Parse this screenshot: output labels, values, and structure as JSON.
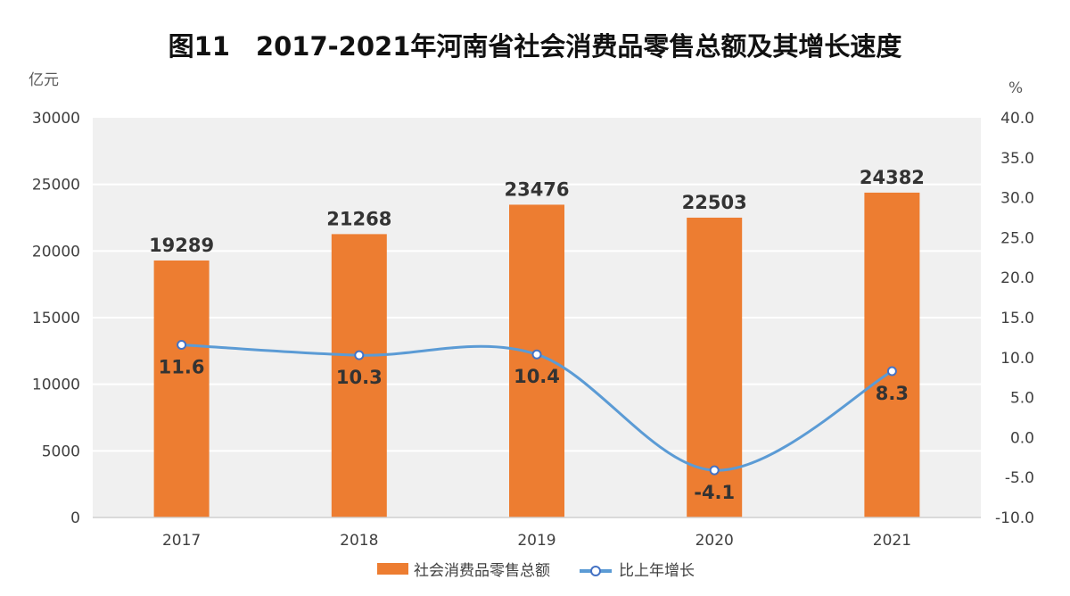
{
  "chart_data": {
    "type": "bar+line",
    "title": "图11　2017-2021年河南省社会消费品零售总额及其增长速度",
    "ylabel_left": "亿元",
    "ylabel_right": "%",
    "categories": [
      "2017",
      "2018",
      "2019",
      "2020",
      "2021"
    ],
    "ylim_left": [
      0,
      30000
    ],
    "ylim_right": [
      -10,
      40
    ],
    "left_ticks": [
      "30000",
      "25000",
      "20000",
      "15000",
      "10000",
      "5000",
      "0"
    ],
    "right_ticks": [
      "40.0",
      "35.0",
      "30.0",
      "25.0",
      "20.0",
      "15.0",
      "10.0",
      "5.0",
      "0.0",
      "-5.0",
      "-10.0"
    ],
    "grid": true,
    "legend_position": "bottom",
    "series": [
      {
        "name": "社会消费品零售总额",
        "type": "bar",
        "axis": "left",
        "color": "#ED7D31",
        "values": [
          19289,
          21268,
          23476,
          22503,
          24382
        ],
        "labels": [
          "19289",
          "21268",
          "23476",
          "22503",
          "24382"
        ]
      },
      {
        "name": "比上年增长",
        "type": "line",
        "axis": "right",
        "color": "#5B9BD5",
        "smooth": true,
        "values": [
          11.6,
          10.3,
          10.4,
          -4.1,
          8.3
        ],
        "labels": [
          "11.6",
          "10.3",
          "10.4",
          "-4.1",
          "8.3"
        ]
      }
    ]
  }
}
